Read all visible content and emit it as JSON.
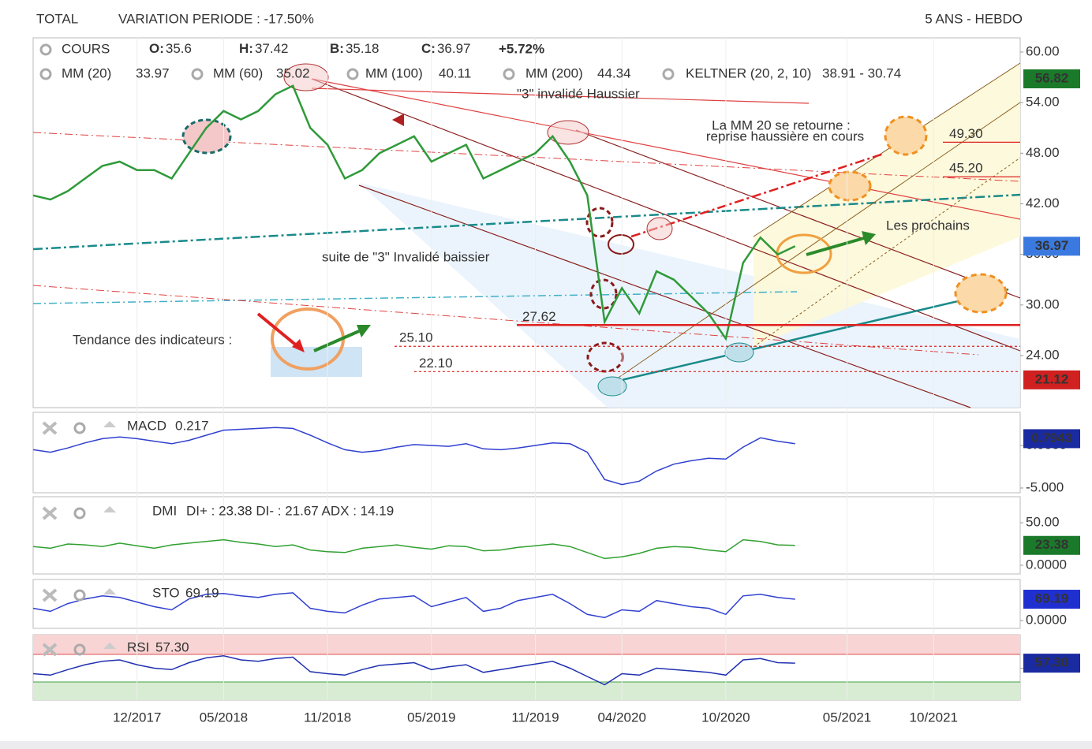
{
  "header": {
    "title": "TOTAL",
    "variation": "VARIATION PERIODE : -17.50%",
    "period": "5 ANS - HEBDO"
  },
  "chart_data": [
    {
      "type": "line",
      "x": [
        "06/2017",
        "07/2017",
        "08/2017",
        "09/2017",
        "10/2017",
        "11/2017",
        "12/2017",
        "01/2018",
        "02/2018",
        "03/2018",
        "04/2018",
        "05/2018",
        "06/2018",
        "07/2018",
        "08/2018",
        "09/2018",
        "10/2018",
        "11/2018",
        "12/2018",
        "01/2019",
        "02/2019",
        "03/2019",
        "04/2019",
        "05/2019",
        "06/2019",
        "07/2019",
        "08/2019",
        "09/2019",
        "10/2019",
        "11/2019",
        "12/2019",
        "01/2020",
        "02/2020",
        "03/2020",
        "04/2020",
        "05/2020",
        "06/2020",
        "07/2020",
        "08/2020",
        "09/2020",
        "10/2020",
        "11/2020",
        "12/2020",
        "01/2021",
        "02/2021"
      ],
      "series": [
        {
          "name": "COURS",
          "color": "#2f9a3a",
          "values": [
            43,
            42.5,
            43.5,
            45,
            46.5,
            47,
            46,
            46,
            45,
            48,
            51,
            53,
            52,
            53,
            55,
            56,
            51,
            49,
            45,
            46,
            48,
            49,
            50,
            47,
            48,
            49,
            45,
            46,
            47,
            48,
            50,
            47,
            43,
            28,
            32,
            29,
            34,
            33,
            31,
            29,
            26,
            35,
            38,
            36,
            36.97
          ]
        }
      ],
      "stats": [
        {
          "label": "O:",
          "value": 35.6
        },
        {
          "label": "H:",
          "value": 37.42
        },
        {
          "label": "B:",
          "value": 35.18
        },
        {
          "label": "C:",
          "value": 36.97
        }
      ],
      "change": "+5.72%",
      "indicators": [
        {
          "name": "MM (20)",
          "value": 33.97,
          "color": "#e02020"
        },
        {
          "name": "MM (60)",
          "value": 35.02,
          "color": "#f0a030"
        },
        {
          "name": "MM (100)",
          "value": 40.11,
          "color": "#40c0d8"
        },
        {
          "name": "MM (200)",
          "value": 44.34,
          "color": "#1a8a2a"
        },
        {
          "name": "KELTNER (20, 2, 10)",
          "value": "38.91 - 30.74",
          "color": "#1a8a2a"
        }
      ],
      "annotations": [
        "\"3\" invalidé Haussier",
        "La MM 20 se retourne :",
        "reprise haussière en cours",
        "Les prochains",
        "suite de \"3\" Invalidé baissier",
        "Tendance des indicateurs :"
      ],
      "levels": {
        "values": [
          27.62,
          25.1,
          22.1,
          49.3,
          45.2
        ],
        "value_labels": [
          "27.62",
          "25.10",
          "22.10",
          "49.30",
          "45.20"
        ]
      },
      "badges": {
        "values": [
          56.82,
          36.97,
          21.12
        ],
        "colors": [
          "#1a7a2a",
          "#3a7ae0",
          "#d02020"
        ]
      },
      "ylim": [
        17.83,
        61.68
      ],
      "yticks": [
        {
          "value": 60,
          "label": "60.00"
        },
        {
          "value": 54,
          "label": "54.00"
        },
        {
          "value": 48,
          "label": "48.00"
        },
        {
          "value": 42,
          "label": "42.00"
        },
        {
          "value": 36,
          "label": "36.00"
        },
        {
          "value": 30,
          "label": "30.00"
        },
        {
          "value": 24,
          "label": "24.00"
        }
      ],
      "xlim": [
        "06/2017",
        "03/2022"
      ],
      "xticks": [
        "12/2017",
        "05/2018",
        "11/2018",
        "05/2019",
        "11/2019",
        "04/2020",
        "10/2020",
        "05/2021",
        "10/2021"
      ],
      "grid": true
    },
    {
      "type": "line",
      "name": "MACD",
      "value": 0.217,
      "badge": 0.7943,
      "badge_color": "#1a2aa0",
      "ylim": [
        -5.56,
        3.89
      ],
      "yticks": [
        {
          "value": 0,
          "label": "0.0000"
        },
        {
          "value": -5,
          "label": "-5.000"
        }
      ],
      "series": [
        {
          "color": "#3040d0",
          "values": [
            -0.5,
            -0.8,
            -0.3,
            0.3,
            0.8,
            1,
            0.8,
            0.5,
            0.2,
            0.6,
            1.2,
            1.8,
            1.9,
            2,
            2.1,
            2,
            1.2,
            0.3,
            -0.5,
            -0.8,
            -0.6,
            -0.2,
            0.1,
            0,
            -0.1,
            0.2,
            -0.4,
            -0.5,
            -0.3,
            0,
            0.3,
            0.2,
            -0.8,
            -4,
            -4.6,
            -4.2,
            -3,
            -2.2,
            -1.8,
            -1.5,
            -1.6,
            -0.2,
            0.9,
            0.5,
            0.2
          ]
        }
      ]
    },
    {
      "type": "line",
      "name": "DMI",
      "value": "DI+ : 23.38 DI- : 21.67 ADX : 14.19",
      "badge": 23.38,
      "badge_color": "#1a7a2a",
      "ylim": [
        -10.2,
        80.6
      ],
      "yticks": [
        {
          "value": 50,
          "label": "50.00"
        },
        {
          "value": 0,
          "label": "0.0000"
        }
      ],
      "series": [
        {
          "color": "#30a030",
          "values": [
            22,
            20,
            25,
            24,
            22,
            26,
            23,
            20,
            24,
            26,
            28,
            30,
            27,
            25,
            22,
            24,
            18,
            16,
            15,
            20,
            22,
            24,
            21,
            19,
            23,
            22,
            17,
            18,
            21,
            23,
            25,
            22,
            15,
            8,
            10,
            14,
            20,
            22,
            21,
            18,
            16,
            30,
            28,
            24,
            23.38
          ]
        }
      ]
    },
    {
      "type": "line",
      "name": "STO",
      "value": 69.19,
      "badge": 69.19,
      "badge_color": "#2030d0",
      "ylim": [
        -25,
        133
      ],
      "yticks": [
        {
          "value": 0,
          "label": "0.0000"
        }
      ],
      "series": [
        {
          "color": "#3040d0",
          "values": [
            40,
            30,
            55,
            70,
            80,
            75,
            60,
            45,
            35,
            70,
            85,
            88,
            80,
            75,
            85,
            90,
            40,
            30,
            25,
            50,
            70,
            75,
            80,
            45,
            60,
            75,
            30,
            40,
            65,
            75,
            85,
            55,
            20,
            10,
            35,
            30,
            65,
            55,
            45,
            40,
            20,
            80,
            85,
            75,
            69.19
          ]
        }
      ]
    },
    {
      "type": "line",
      "name": "RSI",
      "value": 57.3,
      "value_label": "57.30",
      "badge": 57.3,
      "badge_label": "57.30",
      "badge_color": "#1a2aa0",
      "ylim": [
        3.7,
        98.6
      ],
      "yticks": [
        {
          "value": 50,
          "label": "50.00"
        }
      ],
      "series": [
        {
          "color": "#2030b0",
          "values": [
            42,
            40,
            48,
            55,
            60,
            62,
            55,
            50,
            48,
            58,
            65,
            68,
            62,
            60,
            64,
            66,
            45,
            42,
            40,
            48,
            54,
            56,
            58,
            48,
            52,
            55,
            44,
            48,
            52,
            56,
            60,
            50,
            38,
            26,
            42,
            40,
            50,
            48,
            46,
            44,
            40,
            62,
            64,
            58,
            57.3
          ]
        }
      ]
    }
  ]
}
